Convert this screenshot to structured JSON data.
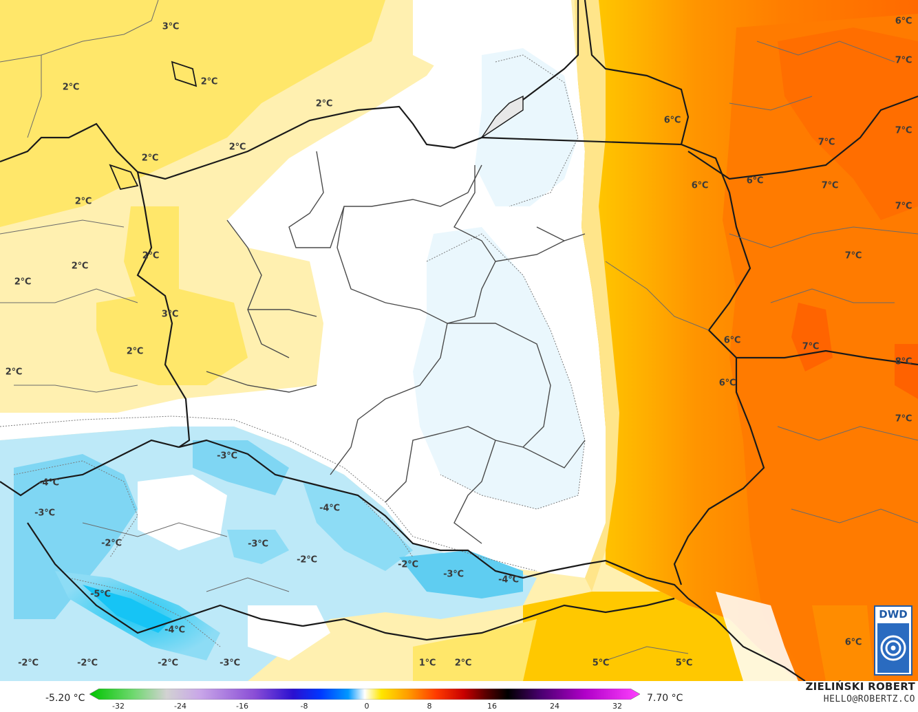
{
  "map": {
    "temperature_labels": [
      {
        "text": "3°C"
      },
      {
        "text": "2°C"
      },
      {
        "text": "2°C"
      },
      {
        "text": "2°C"
      },
      {
        "text": "2°C"
      },
      {
        "text": "2°C"
      },
      {
        "text": "2°C"
      },
      {
        "text": "2°C"
      },
      {
        "text": "2°C"
      },
      {
        "text": "2°C"
      },
      {
        "text": "3°C"
      },
      {
        "text": "2°C"
      },
      {
        "text": "2°C"
      },
      {
        "text": "-3°C"
      },
      {
        "text": "-4°C"
      },
      {
        "text": "-3°C"
      },
      {
        "text": "-4°C"
      },
      {
        "text": "-2°C"
      },
      {
        "text": "-3°C"
      },
      {
        "text": "-2°C"
      },
      {
        "text": "-2°C"
      },
      {
        "text": "-3°C"
      },
      {
        "text": "-4°C"
      },
      {
        "text": "-5°C"
      },
      {
        "text": "-4°C"
      },
      {
        "text": "-2°C"
      },
      {
        "text": "-2°C"
      },
      {
        "text": "-2°C"
      },
      {
        "text": "-3°C"
      },
      {
        "text": "1°C"
      },
      {
        "text": "2°C"
      },
      {
        "text": "5°C"
      },
      {
        "text": "5°C"
      },
      {
        "text": "6°C"
      },
      {
        "text": "6°C"
      },
      {
        "text": "6°C"
      },
      {
        "text": "6°C"
      },
      {
        "text": "6°C"
      },
      {
        "text": "6°C"
      },
      {
        "text": "7°C"
      },
      {
        "text": "7°C"
      },
      {
        "text": "7°C"
      },
      {
        "text": "7°C"
      },
      {
        "text": "7°C"
      },
      {
        "text": "7°C"
      },
      {
        "text": "7°C"
      },
      {
        "text": "8°C"
      },
      {
        "text": "7°C"
      },
      {
        "text": "6°C"
      }
    ]
  },
  "logo": {
    "text": "DWD"
  },
  "legend": {
    "min_label": "-5.20 °C",
    "max_label": "7.70 °C",
    "ticks": [
      "-32",
      "-24",
      "-16",
      "-8",
      "0",
      "8",
      "16",
      "24",
      "32"
    ]
  },
  "credits": {
    "author": "ZIELIŃSKI ROBERT",
    "contact": "HELLO@ROBERTZ.CO"
  }
}
